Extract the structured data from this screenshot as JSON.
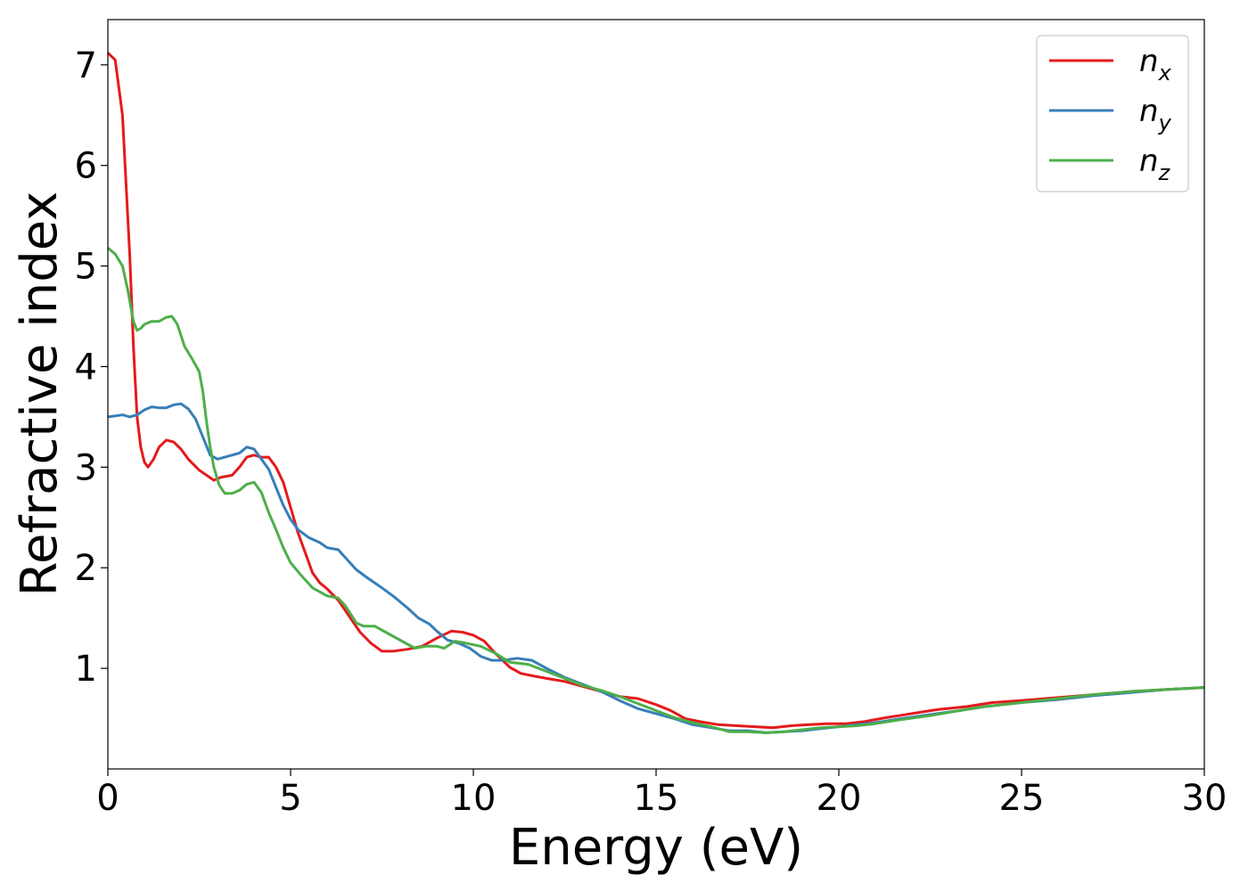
{
  "chart_data": {
    "type": "line",
    "title": "",
    "xlabel": "Energy (eV)",
    "ylabel": "Refractive index",
    "xlim": [
      0,
      30
    ],
    "ylim": [
      0,
      7.45
    ],
    "xticks": [
      0,
      5,
      10,
      15,
      20,
      25,
      30
    ],
    "yticks": [
      1,
      2,
      3,
      4,
      5,
      6,
      7
    ],
    "grid": false,
    "legend": "top-right",
    "series": [
      {
        "name": "n",
        "subscript": "x",
        "color": "#e41a1c",
        "points": [
          [
            0,
            7.12
          ],
          [
            0.2,
            7.05
          ],
          [
            0.4,
            6.5
          ],
          [
            0.5,
            5.8
          ],
          [
            0.6,
            5.1
          ],
          [
            0.7,
            4.2
          ],
          [
            0.8,
            3.5
          ],
          [
            0.9,
            3.2
          ],
          [
            1.0,
            3.05
          ],
          [
            1.1,
            3.0
          ],
          [
            1.25,
            3.08
          ],
          [
            1.4,
            3.2
          ],
          [
            1.6,
            3.27
          ],
          [
            1.8,
            3.25
          ],
          [
            2.0,
            3.18
          ],
          [
            2.2,
            3.08
          ],
          [
            2.5,
            2.97
          ],
          [
            2.7,
            2.92
          ],
          [
            2.9,
            2.87
          ],
          [
            3.1,
            2.9
          ],
          [
            3.4,
            2.92
          ],
          [
            3.6,
            3.0
          ],
          [
            3.8,
            3.1
          ],
          [
            4.0,
            3.12
          ],
          [
            4.2,
            3.1
          ],
          [
            4.4,
            3.1
          ],
          [
            4.6,
            3.0
          ],
          [
            4.8,
            2.85
          ],
          [
            5.0,
            2.6
          ],
          [
            5.2,
            2.35
          ],
          [
            5.4,
            2.15
          ],
          [
            5.6,
            1.95
          ],
          [
            5.8,
            1.85
          ],
          [
            6.0,
            1.79
          ],
          [
            6.3,
            1.68
          ],
          [
            6.6,
            1.52
          ],
          [
            6.9,
            1.36
          ],
          [
            7.2,
            1.25
          ],
          [
            7.5,
            1.17
          ],
          [
            7.8,
            1.17
          ],
          [
            8.2,
            1.19
          ],
          [
            8.6,
            1.22
          ],
          [
            9.0,
            1.3
          ],
          [
            9.4,
            1.37
          ],
          [
            9.7,
            1.36
          ],
          [
            10.0,
            1.33
          ],
          [
            10.3,
            1.27
          ],
          [
            10.6,
            1.15
          ],
          [
            11.0,
            1.01
          ],
          [
            11.3,
            0.95
          ],
          [
            11.7,
            0.92
          ],
          [
            12.0,
            0.9
          ],
          [
            12.5,
            0.87
          ],
          [
            13.0,
            0.82
          ],
          [
            13.5,
            0.77
          ],
          [
            14.0,
            0.72
          ],
          [
            14.5,
            0.7
          ],
          [
            15.0,
            0.64
          ],
          [
            15.4,
            0.58
          ],
          [
            15.8,
            0.5
          ],
          [
            16.2,
            0.47
          ],
          [
            16.7,
            0.44
          ],
          [
            17.2,
            0.43
          ],
          [
            17.7,
            0.42
          ],
          [
            18.2,
            0.41
          ],
          [
            18.7,
            0.43
          ],
          [
            19.2,
            0.44
          ],
          [
            19.7,
            0.45
          ],
          [
            20.2,
            0.45
          ],
          [
            20.7,
            0.47
          ],
          [
            21.3,
            0.51
          ],
          [
            22.0,
            0.55
          ],
          [
            22.7,
            0.59
          ],
          [
            23.5,
            0.62
          ],
          [
            24.2,
            0.66
          ],
          [
            25.0,
            0.68
          ],
          [
            26.0,
            0.71
          ],
          [
            27.0,
            0.74
          ],
          [
            28.0,
            0.77
          ],
          [
            29.0,
            0.79
          ],
          [
            30.0,
            0.81
          ]
        ]
      },
      {
        "name": "n",
        "subscript": "y",
        "color": "#377eb8",
        "points": [
          [
            0,
            3.5
          ],
          [
            0.2,
            3.51
          ],
          [
            0.4,
            3.52
          ],
          [
            0.6,
            3.5
          ],
          [
            0.8,
            3.52
          ],
          [
            1.0,
            3.57
          ],
          [
            1.2,
            3.6
          ],
          [
            1.4,
            3.59
          ],
          [
            1.6,
            3.59
          ],
          [
            1.8,
            3.62
          ],
          [
            2.0,
            3.63
          ],
          [
            2.2,
            3.58
          ],
          [
            2.4,
            3.48
          ],
          [
            2.6,
            3.3
          ],
          [
            2.8,
            3.12
          ],
          [
            3.0,
            3.08
          ],
          [
            3.2,
            3.1
          ],
          [
            3.4,
            3.12
          ],
          [
            3.6,
            3.14
          ],
          [
            3.8,
            3.2
          ],
          [
            4.0,
            3.18
          ],
          [
            4.2,
            3.08
          ],
          [
            4.4,
            2.98
          ],
          [
            4.6,
            2.8
          ],
          [
            4.8,
            2.62
          ],
          [
            5.0,
            2.48
          ],
          [
            5.2,
            2.38
          ],
          [
            5.5,
            2.3
          ],
          [
            5.8,
            2.25
          ],
          [
            6.0,
            2.2
          ],
          [
            6.3,
            2.18
          ],
          [
            6.5,
            2.1
          ],
          [
            6.8,
            1.98
          ],
          [
            7.1,
            1.9
          ],
          [
            7.5,
            1.8
          ],
          [
            7.8,
            1.72
          ],
          [
            8.2,
            1.6
          ],
          [
            8.5,
            1.5
          ],
          [
            8.8,
            1.44
          ],
          [
            9.0,
            1.37
          ],
          [
            9.3,
            1.28
          ],
          [
            9.6,
            1.25
          ],
          [
            9.9,
            1.2
          ],
          [
            10.2,
            1.12
          ],
          [
            10.5,
            1.08
          ],
          [
            10.8,
            1.08
          ],
          [
            11.2,
            1.1
          ],
          [
            11.6,
            1.08
          ],
          [
            12.0,
            1.0
          ],
          [
            12.5,
            0.91
          ],
          [
            13.0,
            0.84
          ],
          [
            13.5,
            0.77
          ],
          [
            14.0,
            0.68
          ],
          [
            14.5,
            0.6
          ],
          [
            15.0,
            0.55
          ],
          [
            15.5,
            0.5
          ],
          [
            16.0,
            0.44
          ],
          [
            16.5,
            0.41
          ],
          [
            17.0,
            0.38
          ],
          [
            17.5,
            0.38
          ],
          [
            18.0,
            0.36
          ],
          [
            18.5,
            0.37
          ],
          [
            19.0,
            0.38
          ],
          [
            19.5,
            0.4
          ],
          [
            20.0,
            0.42
          ],
          [
            20.5,
            0.44
          ],
          [
            21.0,
            0.46
          ],
          [
            21.7,
            0.5
          ],
          [
            22.5,
            0.54
          ],
          [
            23.3,
            0.58
          ],
          [
            24.0,
            0.62
          ],
          [
            25.0,
            0.66
          ],
          [
            26.0,
            0.69
          ],
          [
            27.0,
            0.73
          ],
          [
            28.0,
            0.76
          ],
          [
            29.0,
            0.79
          ],
          [
            30.0,
            0.81
          ]
        ]
      },
      {
        "name": "n",
        "subscript": "z",
        "color": "#4daf4a",
        "points": [
          [
            0,
            5.18
          ],
          [
            0.2,
            5.12
          ],
          [
            0.4,
            5.0
          ],
          [
            0.55,
            4.75
          ],
          [
            0.7,
            4.45
          ],
          [
            0.8,
            4.36
          ],
          [
            0.9,
            4.38
          ],
          [
            1.0,
            4.42
          ],
          [
            1.2,
            4.45
          ],
          [
            1.4,
            4.45
          ],
          [
            1.6,
            4.49
          ],
          [
            1.75,
            4.5
          ],
          [
            1.9,
            4.42
          ],
          [
            2.1,
            4.2
          ],
          [
            2.3,
            4.08
          ],
          [
            2.5,
            3.95
          ],
          [
            2.6,
            3.75
          ],
          [
            2.7,
            3.45
          ],
          [
            2.8,
            3.2
          ],
          [
            2.9,
            3.0
          ],
          [
            3.05,
            2.82
          ],
          [
            3.2,
            2.74
          ],
          [
            3.4,
            2.74
          ],
          [
            3.6,
            2.77
          ],
          [
            3.8,
            2.83
          ],
          [
            4.0,
            2.85
          ],
          [
            4.2,
            2.75
          ],
          [
            4.4,
            2.55
          ],
          [
            4.6,
            2.38
          ],
          [
            4.8,
            2.2
          ],
          [
            5.0,
            2.05
          ],
          [
            5.3,
            1.92
          ],
          [
            5.6,
            1.8
          ],
          [
            6.0,
            1.72
          ],
          [
            6.3,
            1.7
          ],
          [
            6.5,
            1.62
          ],
          [
            6.8,
            1.45
          ],
          [
            7.0,
            1.42
          ],
          [
            7.3,
            1.42
          ],
          [
            7.6,
            1.36
          ],
          [
            8.0,
            1.28
          ],
          [
            8.4,
            1.2
          ],
          [
            8.7,
            1.22
          ],
          [
            9.0,
            1.22
          ],
          [
            9.2,
            1.2
          ],
          [
            9.5,
            1.27
          ],
          [
            9.8,
            1.25
          ],
          [
            10.2,
            1.22
          ],
          [
            10.6,
            1.15
          ],
          [
            11.0,
            1.06
          ],
          [
            11.5,
            1.04
          ],
          [
            12.0,
            0.97
          ],
          [
            12.5,
            0.9
          ],
          [
            13.0,
            0.83
          ],
          [
            13.5,
            0.78
          ],
          [
            14.0,
            0.72
          ],
          [
            14.5,
            0.65
          ],
          [
            15.0,
            0.58
          ],
          [
            15.5,
            0.51
          ],
          [
            16.0,
            0.46
          ],
          [
            16.5,
            0.42
          ],
          [
            17.0,
            0.37
          ],
          [
            17.5,
            0.37
          ],
          [
            18.0,
            0.36
          ],
          [
            18.5,
            0.37
          ],
          [
            19.0,
            0.39
          ],
          [
            19.5,
            0.41
          ],
          [
            20.0,
            0.42
          ],
          [
            20.5,
            0.43
          ],
          [
            21.0,
            0.45
          ],
          [
            21.7,
            0.49
          ],
          [
            22.5,
            0.53
          ],
          [
            23.3,
            0.58
          ],
          [
            24.0,
            0.62
          ],
          [
            25.0,
            0.66
          ],
          [
            26.0,
            0.7
          ],
          [
            27.0,
            0.74
          ],
          [
            28.0,
            0.77
          ],
          [
            29.0,
            0.79
          ],
          [
            30.0,
            0.81
          ]
        ]
      }
    ]
  }
}
